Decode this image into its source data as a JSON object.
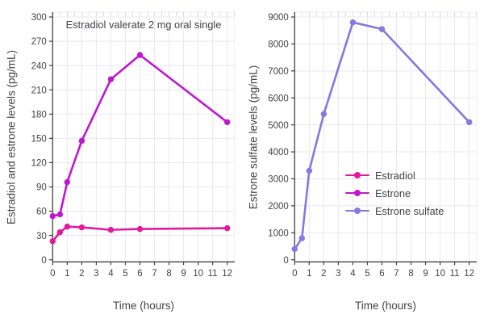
{
  "colors": {
    "estradiol": "#e2199b",
    "estrone": "#bf17d1",
    "estrone_sulfate": "#8279e2",
    "axis": "#444444",
    "text": "#444444",
    "grid": "#e9e8ef",
    "minor_tick": "#d9d9e1",
    "frame": "#efeef4"
  },
  "chart_data": [
    {
      "type": "line",
      "title": "Estradiol valerate 2 mg oral single",
      "xlabel": "Time (hours)",
      "ylabel": "Estradiol and estrone levels (pg/mL)",
      "xlim": [
        0,
        12.5
      ],
      "ylim": [
        0,
        300
      ],
      "xticks": [
        0,
        1,
        2,
        3,
        4,
        5,
        6,
        7,
        8,
        9,
        10,
        11,
        12
      ],
      "yticks": [
        0,
        30,
        60,
        90,
        120,
        150,
        180,
        210,
        240,
        270,
        300
      ],
      "grid": true,
      "x": [
        0,
        0.5,
        1,
        2,
        4,
        6,
        12
      ],
      "series": [
        {
          "name": "Estradiol",
          "color_key": "estradiol",
          "values": [
            23,
            34,
            41,
            40,
            37,
            38,
            39
          ]
        },
        {
          "name": "Estrone",
          "color_key": "estrone",
          "values": [
            54,
            56,
            96,
            147,
            223,
            253,
            170
          ]
        }
      ]
    },
    {
      "type": "line",
      "title": "",
      "xlabel": "Time (hours)",
      "ylabel": "Estrone sulfate levels (pg/mL)",
      "xlim": [
        0,
        12.5
      ],
      "ylim": [
        0,
        9000
      ],
      "xticks": [
        0,
        1,
        2,
        3,
        4,
        5,
        6,
        7,
        8,
        9,
        10,
        11,
        12
      ],
      "yticks": [
        0,
        1000,
        2000,
        3000,
        4000,
        5000,
        6000,
        7000,
        8000,
        9000
      ],
      "grid": true,
      "x": [
        0,
        0.5,
        1,
        2,
        4,
        6,
        12
      ],
      "series": [
        {
          "name": "Estrone sulfate",
          "color_key": "estrone_sulfate",
          "values": [
            400,
            800,
            3300,
            5400,
            8800,
            8550,
            5100
          ]
        }
      ],
      "legend": {
        "position": "center-left",
        "entries": [
          {
            "label": "Estradiol",
            "color_key": "estradiol"
          },
          {
            "label": "Estrone",
            "color_key": "estrone"
          },
          {
            "label": "Estrone sulfate",
            "color_key": "estrone_sulfate"
          }
        ]
      }
    }
  ]
}
